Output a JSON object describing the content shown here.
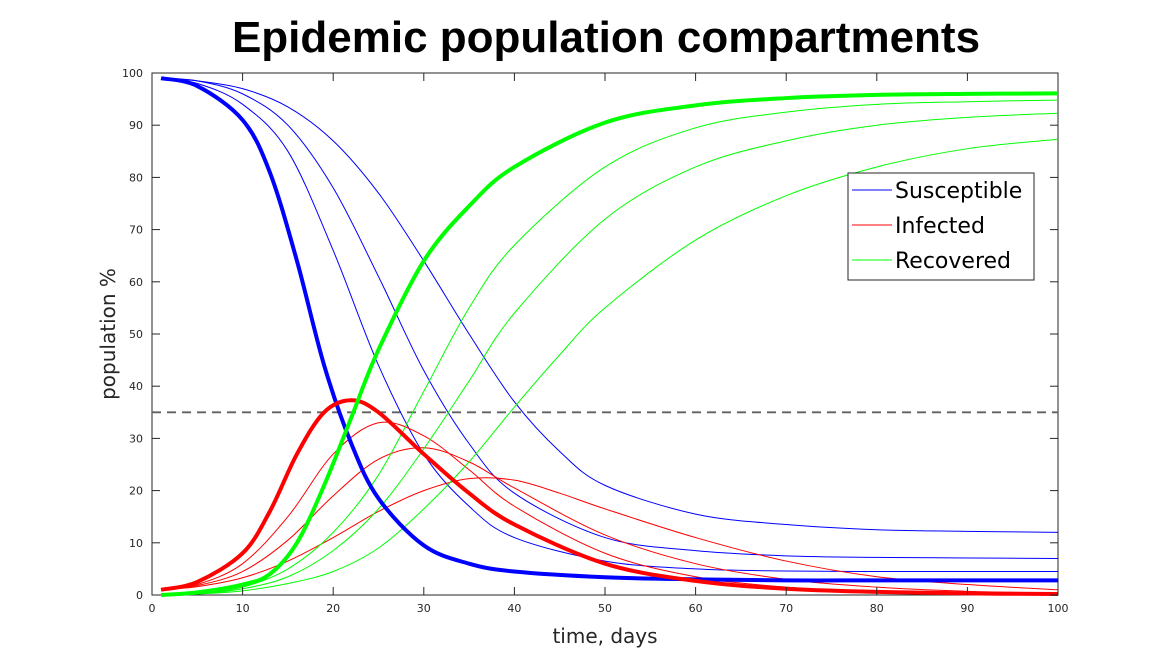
{
  "chart_data": {
    "type": "line",
    "title": "Epidemic population compartments",
    "xlabel": "time, days",
    "ylabel": "population %",
    "xlim": [
      0,
      100
    ],
    "ylim": [
      0,
      100
    ],
    "xticks": [
      0,
      10,
      20,
      30,
      40,
      50,
      60,
      70,
      80,
      90,
      100
    ],
    "yticks": [
      0,
      10,
      20,
      30,
      40,
      50,
      60,
      70,
      80,
      90,
      100
    ],
    "grid": false,
    "legend_position": "top-right",
    "legend": [
      {
        "label": "Susceptible",
        "color": "#0000ff"
      },
      {
        "label": "Infected",
        "color": "#ff0000"
      },
      {
        "label": "Recovered",
        "color": "#00ff00"
      }
    ],
    "reference_line": {
      "y": 35,
      "style": "dashed",
      "color": "#606060"
    },
    "series": [
      {
        "group": "Susceptible",
        "color": "#0000ff",
        "bold": true,
        "x": [
          1,
          5,
          10,
          13,
          16,
          19,
          22,
          25,
          30,
          35,
          40,
          50,
          60,
          70,
          80,
          90,
          100
        ],
        "y": [
          99,
          97.5,
          91,
          81,
          64,
          44,
          29,
          18.5,
          9.5,
          6,
          4.5,
          3.4,
          3.0,
          2.8,
          2.8,
          2.8,
          2.8
        ]
      },
      {
        "group": "Susceptible",
        "color": "#0000ff",
        "bold": false,
        "x": [
          1,
          5,
          10,
          15,
          20,
          25,
          30,
          35,
          40,
          50,
          60,
          70,
          80,
          90,
          100
        ],
        "y": [
          99,
          98,
          94,
          85,
          66,
          44,
          27,
          17,
          11,
          6.5,
          5,
          4.6,
          4.5,
          4.5,
          4.5
        ]
      },
      {
        "group": "Susceptible",
        "color": "#0000ff",
        "bold": false,
        "x": [
          1,
          5,
          10,
          15,
          20,
          25,
          30,
          35,
          40,
          50,
          60,
          70,
          80,
          90,
          100
        ],
        "y": [
          99,
          98.5,
          96,
          90,
          78,
          61,
          43,
          29,
          19.5,
          11,
          8.5,
          7.5,
          7.2,
          7.1,
          7.0
        ]
      },
      {
        "group": "Susceptible",
        "color": "#0000ff",
        "bold": false,
        "x": [
          1,
          5,
          10,
          15,
          20,
          25,
          30,
          35,
          40,
          45,
          50,
          60,
          70,
          80,
          90,
          100
        ],
        "y": [
          99,
          98.5,
          97,
          93.5,
          87,
          77,
          64,
          50,
          37,
          27.5,
          21,
          15.5,
          13.5,
          12.5,
          12.2,
          12.0
        ]
      },
      {
        "group": "Infected",
        "color": "#ff0000",
        "bold": true,
        "x": [
          1,
          5,
          10,
          13,
          16,
          19,
          22,
          25,
          30,
          35,
          40,
          50,
          60,
          70,
          80,
          90,
          100
        ],
        "y": [
          1,
          2.5,
          8,
          16,
          27,
          35,
          37.3,
          35,
          27,
          19.5,
          13.5,
          6,
          2.7,
          1.2,
          0.6,
          0.3,
          0.2
        ]
      },
      {
        "group": "Infected",
        "color": "#ff0000",
        "bold": false,
        "x": [
          1,
          5,
          10,
          15,
          20,
          25,
          30,
          35,
          40,
          50,
          60,
          70,
          80,
          90,
          100
        ],
        "y": [
          1,
          2,
          6,
          15,
          27,
          33,
          30.5,
          24,
          17,
          8,
          3.5,
          1.5,
          0.6,
          0.3,
          0.2
        ]
      },
      {
        "group": "Infected",
        "color": "#ff0000",
        "bold": false,
        "x": [
          1,
          5,
          10,
          15,
          20,
          25,
          30,
          35,
          40,
          50,
          60,
          70,
          80,
          90,
          100
        ],
        "y": [
          1,
          1.8,
          4.5,
          10.5,
          19,
          26,
          28.2,
          25.5,
          20.5,
          11.5,
          6,
          3,
          1.5,
          0.7,
          0.4
        ]
      },
      {
        "group": "Infected",
        "color": "#ff0000",
        "bold": false,
        "x": [
          1,
          5,
          10,
          15,
          20,
          25,
          30,
          35,
          40,
          45,
          50,
          60,
          70,
          80,
          90,
          100
        ],
        "y": [
          1,
          1.6,
          3.3,
          6.5,
          11,
          16,
          20,
          22.3,
          22,
          19.5,
          16.5,
          11,
          6.5,
          3.5,
          2,
          1
        ]
      },
      {
        "group": "Recovered",
        "color": "#00ff00",
        "bold": true,
        "x": [
          1,
          5,
          10,
          13,
          16,
          19,
          22,
          25,
          30,
          35,
          40,
          50,
          60,
          70,
          80,
          90,
          100
        ],
        "y": [
          0,
          0.5,
          2,
          4,
          10,
          21,
          34,
          47,
          64,
          74.5,
          82,
          90.5,
          93.8,
          95.2,
          95.8,
          96.0,
          96.1
        ]
      },
      {
        "group": "Recovered",
        "color": "#00ff00",
        "bold": false,
        "x": [
          1,
          5,
          10,
          15,
          20,
          25,
          30,
          35,
          40,
          50,
          60,
          70,
          80,
          90,
          100
        ],
        "y": [
          0,
          0.3,
          1.5,
          5,
          12,
          23,
          39,
          55,
          67,
          82,
          89.5,
          92.5,
          94,
          94.5,
          94.8
        ]
      },
      {
        "group": "Recovered",
        "color": "#00ff00",
        "bold": false,
        "x": [
          1,
          5,
          10,
          15,
          20,
          25,
          30,
          35,
          40,
          50,
          60,
          70,
          80,
          90,
          100
        ],
        "y": [
          0,
          0.2,
          1.2,
          3.5,
          8.5,
          16.5,
          28,
          41,
          54,
          72,
          82,
          87,
          90,
          91.5,
          92.3
        ]
      },
      {
        "group": "Recovered",
        "color": "#00ff00",
        "bold": false,
        "x": [
          1,
          5,
          10,
          15,
          20,
          25,
          30,
          35,
          40,
          45,
          50,
          60,
          70,
          80,
          90,
          100
        ],
        "y": [
          0,
          0.2,
          0.8,
          2.2,
          4.5,
          9,
          16.5,
          25.5,
          36,
          46,
          55,
          68,
          76.5,
          82,
          85.5,
          87.3
        ]
      }
    ]
  }
}
